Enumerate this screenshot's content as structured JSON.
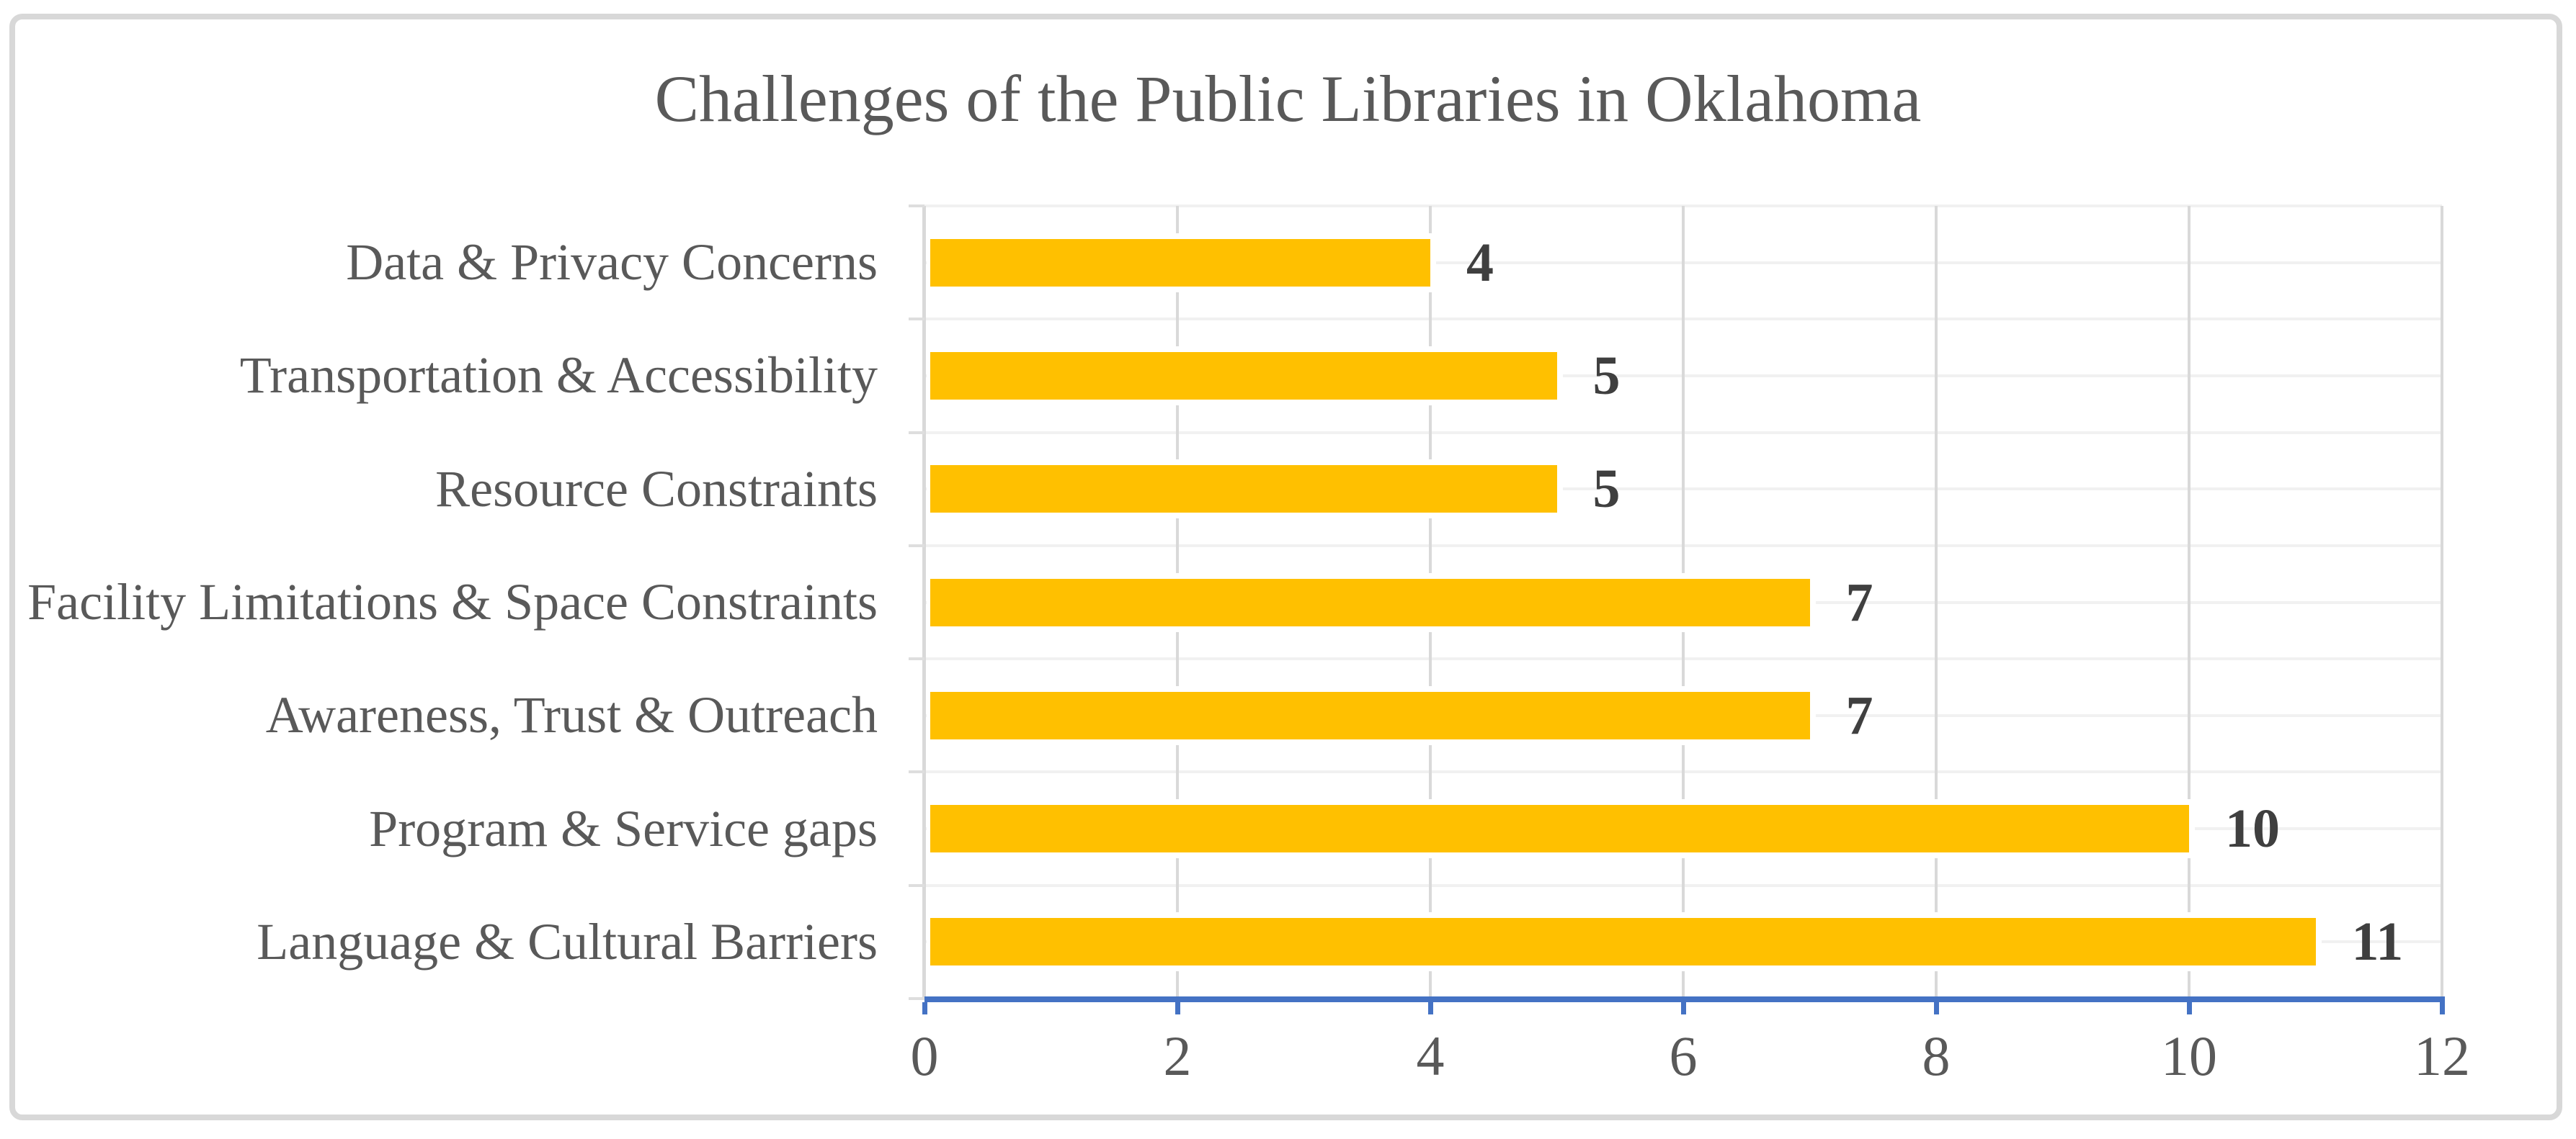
{
  "chart_data": {
    "type": "bar",
    "orientation": "horizontal",
    "title": "Challenges of the Public Libraries in Oklahoma",
    "categories": [
      "Data & Privacy Concerns",
      "Transportation & Accessibility",
      "Resource Constraints",
      "Facility Limitations & Space Constraints",
      "Awareness, Trust & Outreach",
      "Program & Service gaps",
      "Language & Cultural Barriers"
    ],
    "values": [
      4,
      5,
      5,
      7,
      7,
      10,
      11
    ],
    "data_labels": [
      "4",
      "5",
      "5",
      "7",
      "7",
      "10",
      "11"
    ],
    "xlabel": "",
    "ylabel": "",
    "xlim": [
      0,
      12
    ],
    "x_ticks": [
      0,
      2,
      4,
      6,
      8,
      10,
      12
    ],
    "grid": "major-vertical-and-minor-horizontal",
    "legend": "none",
    "colors": {
      "bar": "#FFC000",
      "value_axis_line": "#4472C4",
      "title_text": "#595959",
      "axis_text": "#595959",
      "data_label_text": "#3F3F3F",
      "major_grid": "#D9D9D9",
      "minor_grid": "#F1F1F1",
      "category_axis_line": "#D9D9D9",
      "category_tick": "#DEDEDE",
      "chart_border": "#D8D8D8",
      "background": "#FFFFFF"
    }
  }
}
